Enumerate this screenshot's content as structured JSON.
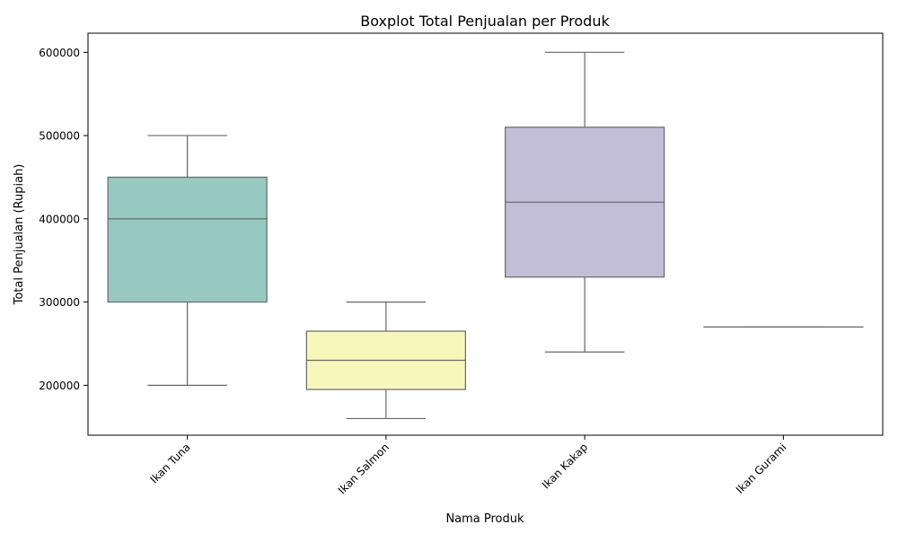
{
  "chart_data": {
    "type": "boxplot",
    "title": "Boxplot Total Penjualan per Produk",
    "xlabel": "Nama Produk",
    "ylabel": "Total Penjualan (Rupiah)",
    "ylim": [
      140000,
      623000
    ],
    "yticks": [
      200000,
      300000,
      400000,
      500000,
      600000
    ],
    "ytick_labels": [
      "200000",
      "300000",
      "400000",
      "500000",
      "600000"
    ],
    "grid": false,
    "categories": [
      "Ikan Tuna",
      "Ikan Salmon",
      "Ikan Kakap",
      "Ikan Gurami"
    ],
    "boxes": [
      {
        "category": "Ikan Tuna",
        "whisker_low": 200000,
        "q1": 300000,
        "median": 400000,
        "q3": 450000,
        "whisker_high": 500000,
        "color": "#96cac0"
      },
      {
        "category": "Ikan Salmon",
        "whisker_low": 160000,
        "q1": 195000,
        "median": 230000,
        "q3": 265000,
        "whisker_high": 300000,
        "color": "#f7f7bb"
      },
      {
        "category": "Ikan Kakap",
        "whisker_low": 240000,
        "q1": 330000,
        "median": 420000,
        "q3": 510000,
        "whisker_high": 600000,
        "color": "#c2bed8"
      },
      {
        "category": "Ikan Gurami",
        "whisker_low": 270000,
        "q1": 270000,
        "median": 270000,
        "q3": 270000,
        "whisker_high": 270000,
        "color": "#f1a29a"
      }
    ]
  }
}
